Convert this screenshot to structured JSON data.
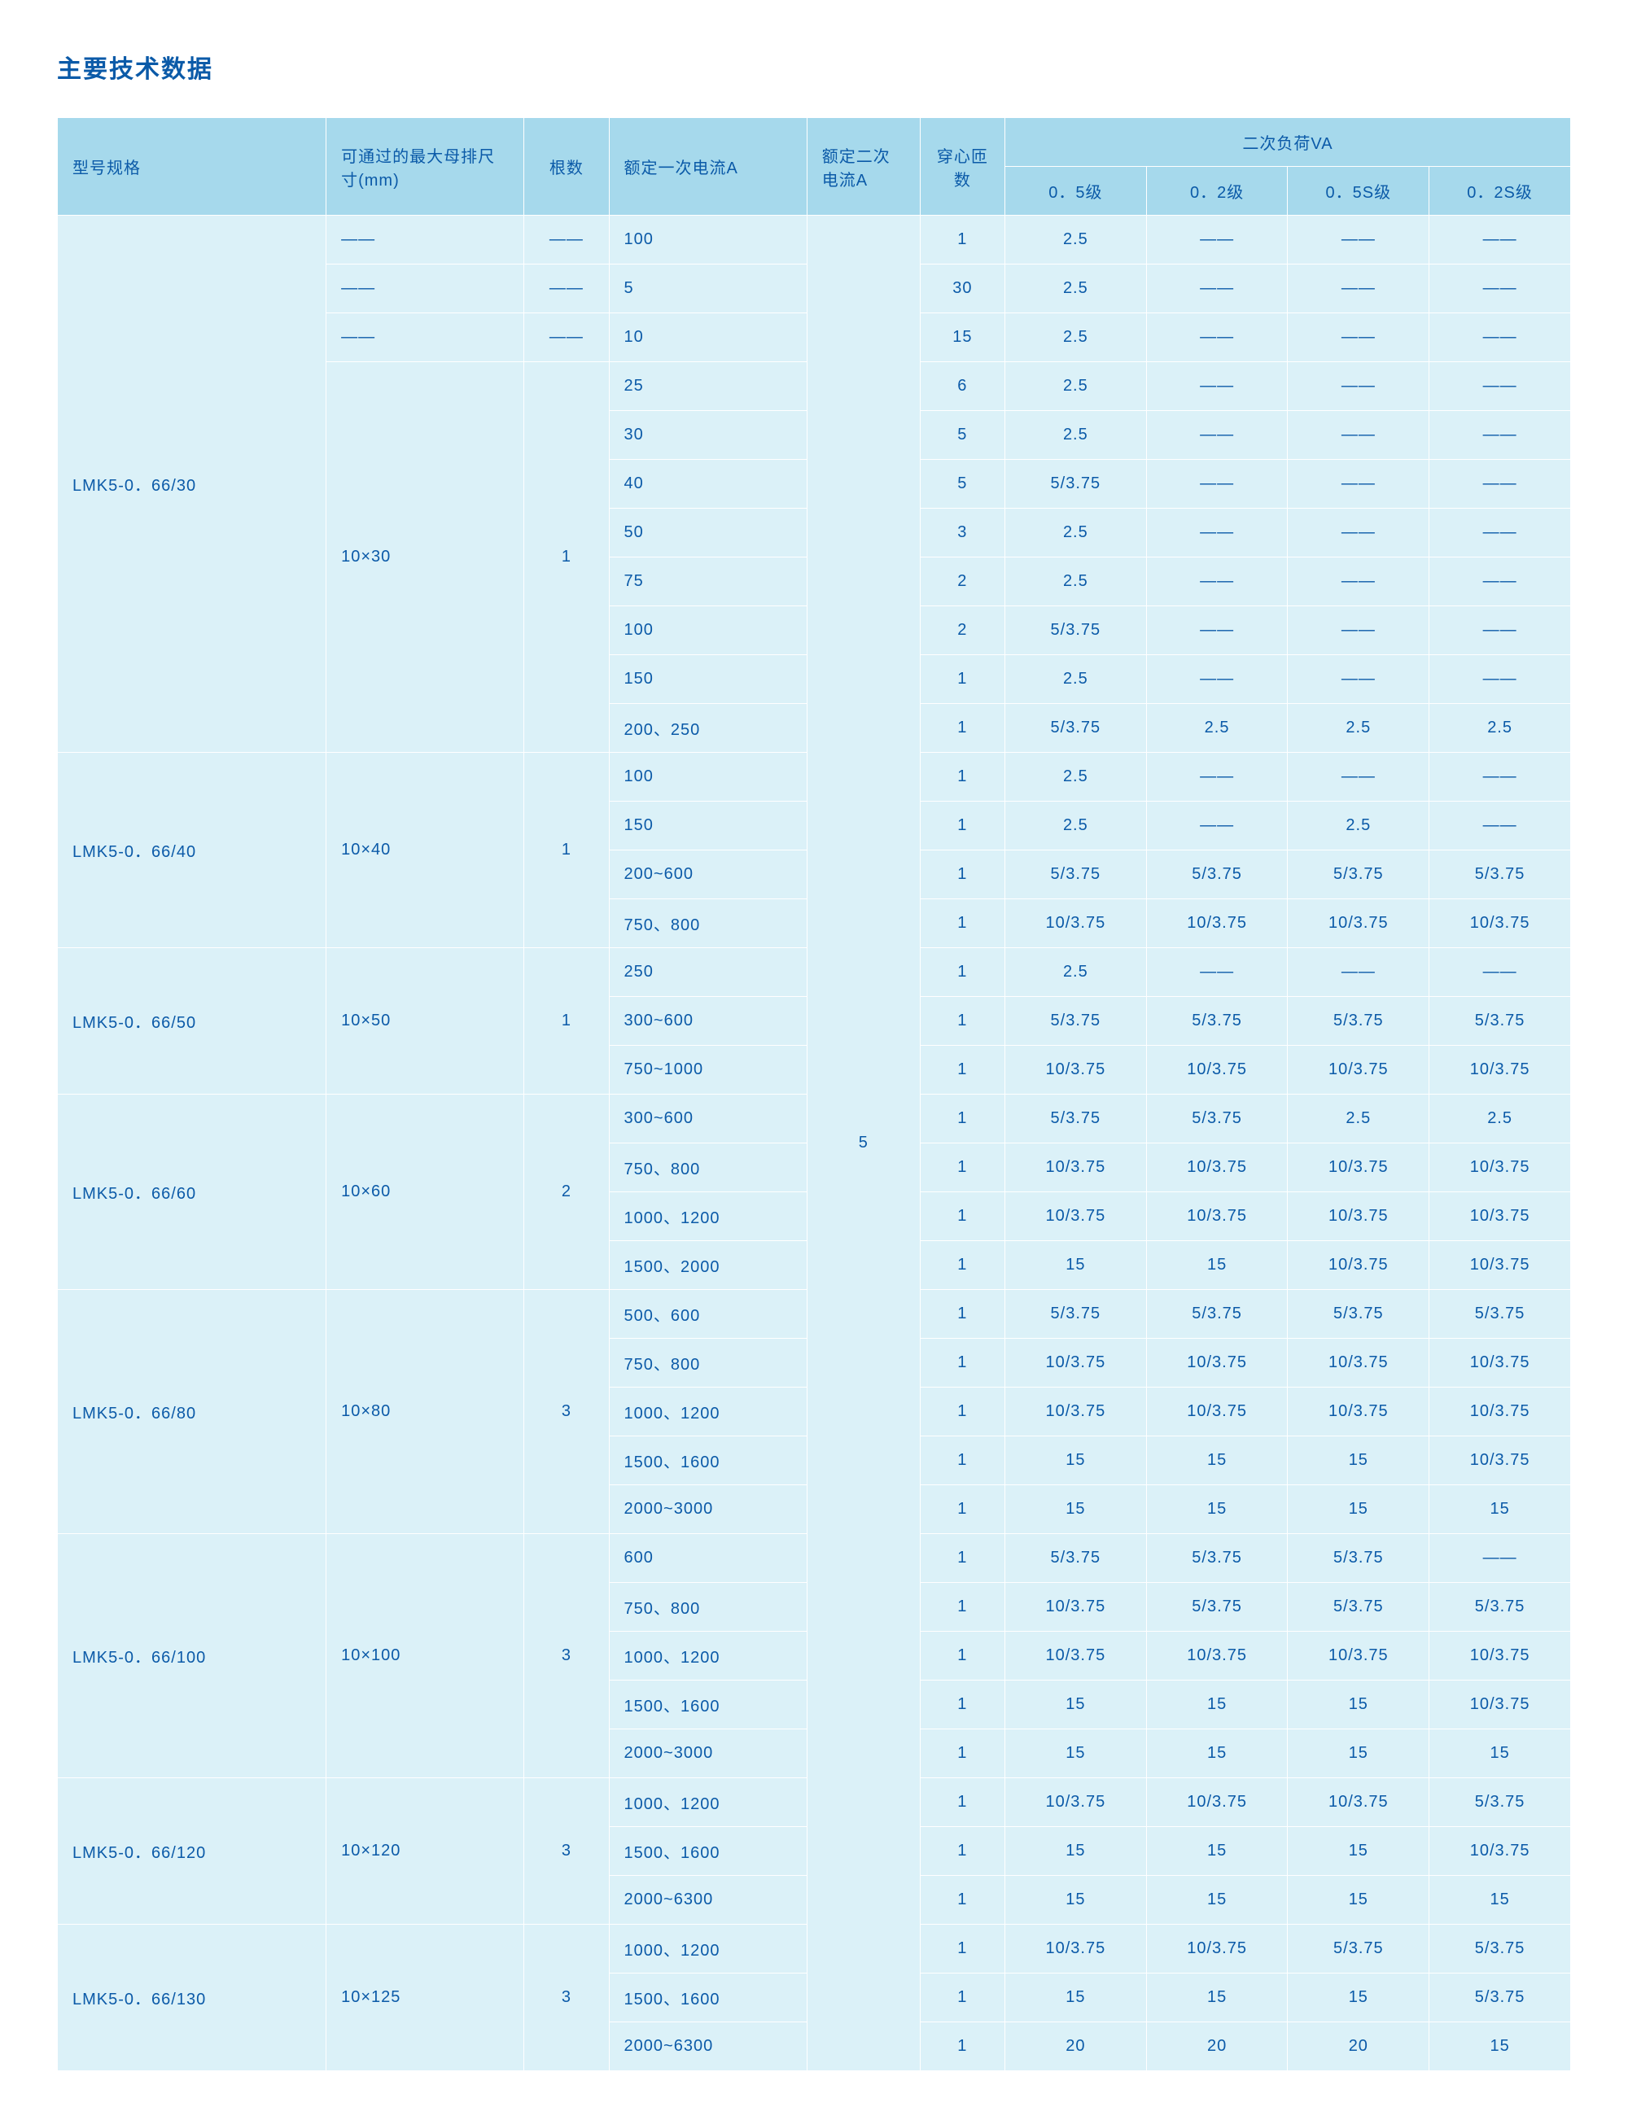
{
  "title": "主要技术数据",
  "colors": {
    "header_bg": "#a6d9ec",
    "body_bg": "#dbf1f8",
    "border": "#ffffff",
    "text": "#0b5aa8",
    "page_bg": "#ffffff"
  },
  "typography": {
    "title_fontsize": 30,
    "cell_fontsize": 20,
    "font_family": "Microsoft YaHei"
  },
  "table": {
    "type": "table",
    "headers": {
      "model": "型号规格",
      "busbar": "可通过的最大母排尺寸(mm)",
      "count": "根数",
      "primary": "额定一次电流A",
      "secondary": "额定二次电流A",
      "turns": "穿心匝数",
      "va_group": "二次负荷VA",
      "va_05": "0．5级",
      "va_02": "0．2级",
      "va_05s": "0．5S级",
      "va_02s": "0．2S级"
    },
    "dash": "——",
    "secondary_value": "5",
    "groups": [
      {
        "model": "LMK5-0．66/30",
        "busbar_blocks": [
          {
            "busbar": "——",
            "count": "——",
            "rows": [
              {
                "pri": "100",
                "turns": "1",
                "va": [
                  "2.5",
                  "——",
                  "——",
                  "——"
                ]
              }
            ]
          },
          {
            "busbar": "——",
            "count": "——",
            "rows": [
              {
                "pri": "5",
                "turns": "30",
                "va": [
                  "2.5",
                  "——",
                  "——",
                  "——"
                ]
              }
            ]
          },
          {
            "busbar": "——",
            "count": "——",
            "rows": [
              {
                "pri": "10",
                "turns": "15",
                "va": [
                  "2.5",
                  "——",
                  "——",
                  "——"
                ]
              }
            ]
          },
          {
            "busbar": "10×30",
            "count": "1",
            "rows": [
              {
                "pri": "25",
                "turns": "6",
                "va": [
                  "2.5",
                  "——",
                  "——",
                  "——"
                ]
              },
              {
                "pri": "30",
                "turns": "5",
                "va": [
                  "2.5",
                  "——",
                  "——",
                  "——"
                ]
              },
              {
                "pri": "40",
                "turns": "5",
                "va": [
                  "5/3.75",
                  "——",
                  "——",
                  "——"
                ]
              },
              {
                "pri": "50",
                "turns": "3",
                "va": [
                  "2.5",
                  "——",
                  "——",
                  "——"
                ]
              },
              {
                "pri": "75",
                "turns": "2",
                "va": [
                  "2.5",
                  "——",
                  "——",
                  "——"
                ]
              },
              {
                "pri": "100",
                "turns": "2",
                "va": [
                  "5/3.75",
                  "——",
                  "——",
                  "——"
                ]
              },
              {
                "pri": "150",
                "turns": "1",
                "va": [
                  "2.5",
                  "——",
                  "——",
                  "——"
                ]
              },
              {
                "pri": "200、250",
                "turns": "1",
                "va": [
                  "5/3.75",
                  "2.5",
                  "2.5",
                  "2.5"
                ]
              }
            ]
          }
        ]
      },
      {
        "model": "LMK5-0．66/40",
        "busbar_blocks": [
          {
            "busbar": "10×40",
            "count": "1",
            "rows": [
              {
                "pri": "100",
                "turns": "1",
                "va": [
                  "2.5",
                  "——",
                  "——",
                  "——"
                ]
              },
              {
                "pri": "150",
                "turns": "1",
                "va": [
                  "2.5",
                  "——",
                  "2.5",
                  "——"
                ]
              },
              {
                "pri": "200~600",
                "turns": "1",
                "va": [
                  "5/3.75",
                  "5/3.75",
                  "5/3.75",
                  "5/3.75"
                ]
              },
              {
                "pri": "750、800",
                "turns": "1",
                "va": [
                  "10/3.75",
                  "10/3.75",
                  "10/3.75",
                  "10/3.75"
                ]
              }
            ]
          }
        ]
      },
      {
        "model": "LMK5-0．66/50",
        "busbar_blocks": [
          {
            "busbar": "10×50",
            "count": "1",
            "rows": [
              {
                "pri": "250",
                "turns": "1",
                "va": [
                  "2.5",
                  "——",
                  "——",
                  "——"
                ]
              },
              {
                "pri": "300~600",
                "turns": "1",
                "va": [
                  "5/3.75",
                  "5/3.75",
                  "5/3.75",
                  "5/3.75"
                ]
              },
              {
                "pri": "750~1000",
                "turns": "1",
                "va": [
                  "10/3.75",
                  "10/3.75",
                  "10/3.75",
                  "10/3.75"
                ]
              }
            ]
          }
        ]
      },
      {
        "model": "LMK5-0．66/60",
        "busbar_blocks": [
          {
            "busbar": "10×60",
            "count": "2",
            "rows": [
              {
                "pri": "300~600",
                "turns": "1",
                "va": [
                  "5/3.75",
                  "5/3.75",
                  "2.5",
                  "2.5"
                ]
              },
              {
                "pri": "750、800",
                "turns": "1",
                "va": [
                  "10/3.75",
                  "10/3.75",
                  "10/3.75",
                  "10/3.75"
                ]
              },
              {
                "pri": "1000、1200",
                "turns": "1",
                "va": [
                  "10/3.75",
                  "10/3.75",
                  "10/3.75",
                  "10/3.75"
                ]
              },
              {
                "pri": "1500、2000",
                "turns": "1",
                "va": [
                  "15",
                  "15",
                  "10/3.75",
                  "10/3.75"
                ]
              }
            ]
          }
        ]
      },
      {
        "model": "LMK5-0．66/80",
        "busbar_blocks": [
          {
            "busbar": "10×80",
            "count": "3",
            "rows": [
              {
                "pri": "500、600",
                "turns": "1",
                "va": [
                  "5/3.75",
                  "5/3.75",
                  "5/3.75",
                  "5/3.75"
                ]
              },
              {
                "pri": "750、800",
                "turns": "1",
                "va": [
                  "10/3.75",
                  "10/3.75",
                  "10/3.75",
                  "10/3.75"
                ]
              },
              {
                "pri": "1000、1200",
                "turns": "1",
                "va": [
                  "10/3.75",
                  "10/3.75",
                  "10/3.75",
                  "10/3.75"
                ]
              },
              {
                "pri": "1500、1600",
                "turns": "1",
                "va": [
                  "15",
                  "15",
                  "15",
                  "10/3.75"
                ]
              },
              {
                "pri": "2000~3000",
                "turns": "1",
                "va": [
                  "15",
                  "15",
                  "15",
                  "15"
                ]
              }
            ]
          }
        ]
      },
      {
        "model": "LMK5-0．66/100",
        "busbar_blocks": [
          {
            "busbar": "10×100",
            "count": "3",
            "rows": [
              {
                "pri": "600",
                "turns": "1",
                "va": [
                  "5/3.75",
                  "5/3.75",
                  "5/3.75",
                  "——"
                ]
              },
              {
                "pri": "750、800",
                "turns": "1",
                "va": [
                  "10/3.75",
                  "5/3.75",
                  "5/3.75",
                  "5/3.75"
                ]
              },
              {
                "pri": "1000、1200",
                "turns": "1",
                "va": [
                  "10/3.75",
                  "10/3.75",
                  "10/3.75",
                  "10/3.75"
                ]
              },
              {
                "pri": "1500、1600",
                "turns": "1",
                "va": [
                  "15",
                  "15",
                  "15",
                  "10/3.75"
                ]
              },
              {
                "pri": "2000~3000",
                "turns": "1",
                "va": [
                  "15",
                  "15",
                  "15",
                  "15"
                ]
              }
            ]
          }
        ]
      },
      {
        "model": "LMK5-0．66/120",
        "busbar_blocks": [
          {
            "busbar": "10×120",
            "count": "3",
            "rows": [
              {
                "pri": "1000、1200",
                "turns": "1",
                "va": [
                  "10/3.75",
                  "10/3.75",
                  "10/3.75",
                  "5/3.75"
                ]
              },
              {
                "pri": "1500、1600",
                "turns": "1",
                "va": [
                  "15",
                  "15",
                  "15",
                  "10/3.75"
                ]
              },
              {
                "pri": "2000~6300",
                "turns": "1",
                "va": [
                  "15",
                  "15",
                  "15",
                  "15"
                ]
              }
            ]
          }
        ]
      },
      {
        "model": "LMK5-0．66/130",
        "busbar_blocks": [
          {
            "busbar": "10×125",
            "count": "3",
            "rows": [
              {
                "pri": "1000、1200",
                "turns": "1",
                "va": [
                  "10/3.75",
                  "10/3.75",
                  "5/3.75",
                  "5/3.75"
                ]
              },
              {
                "pri": "1500、1600",
                "turns": "1",
                "va": [
                  "15",
                  "15",
                  "15",
                  "5/3.75"
                ]
              },
              {
                "pri": "2000~6300",
                "turns": "1",
                "va": [
                  "20",
                  "20",
                  "20",
                  "15"
                ]
              }
            ]
          }
        ]
      }
    ]
  }
}
